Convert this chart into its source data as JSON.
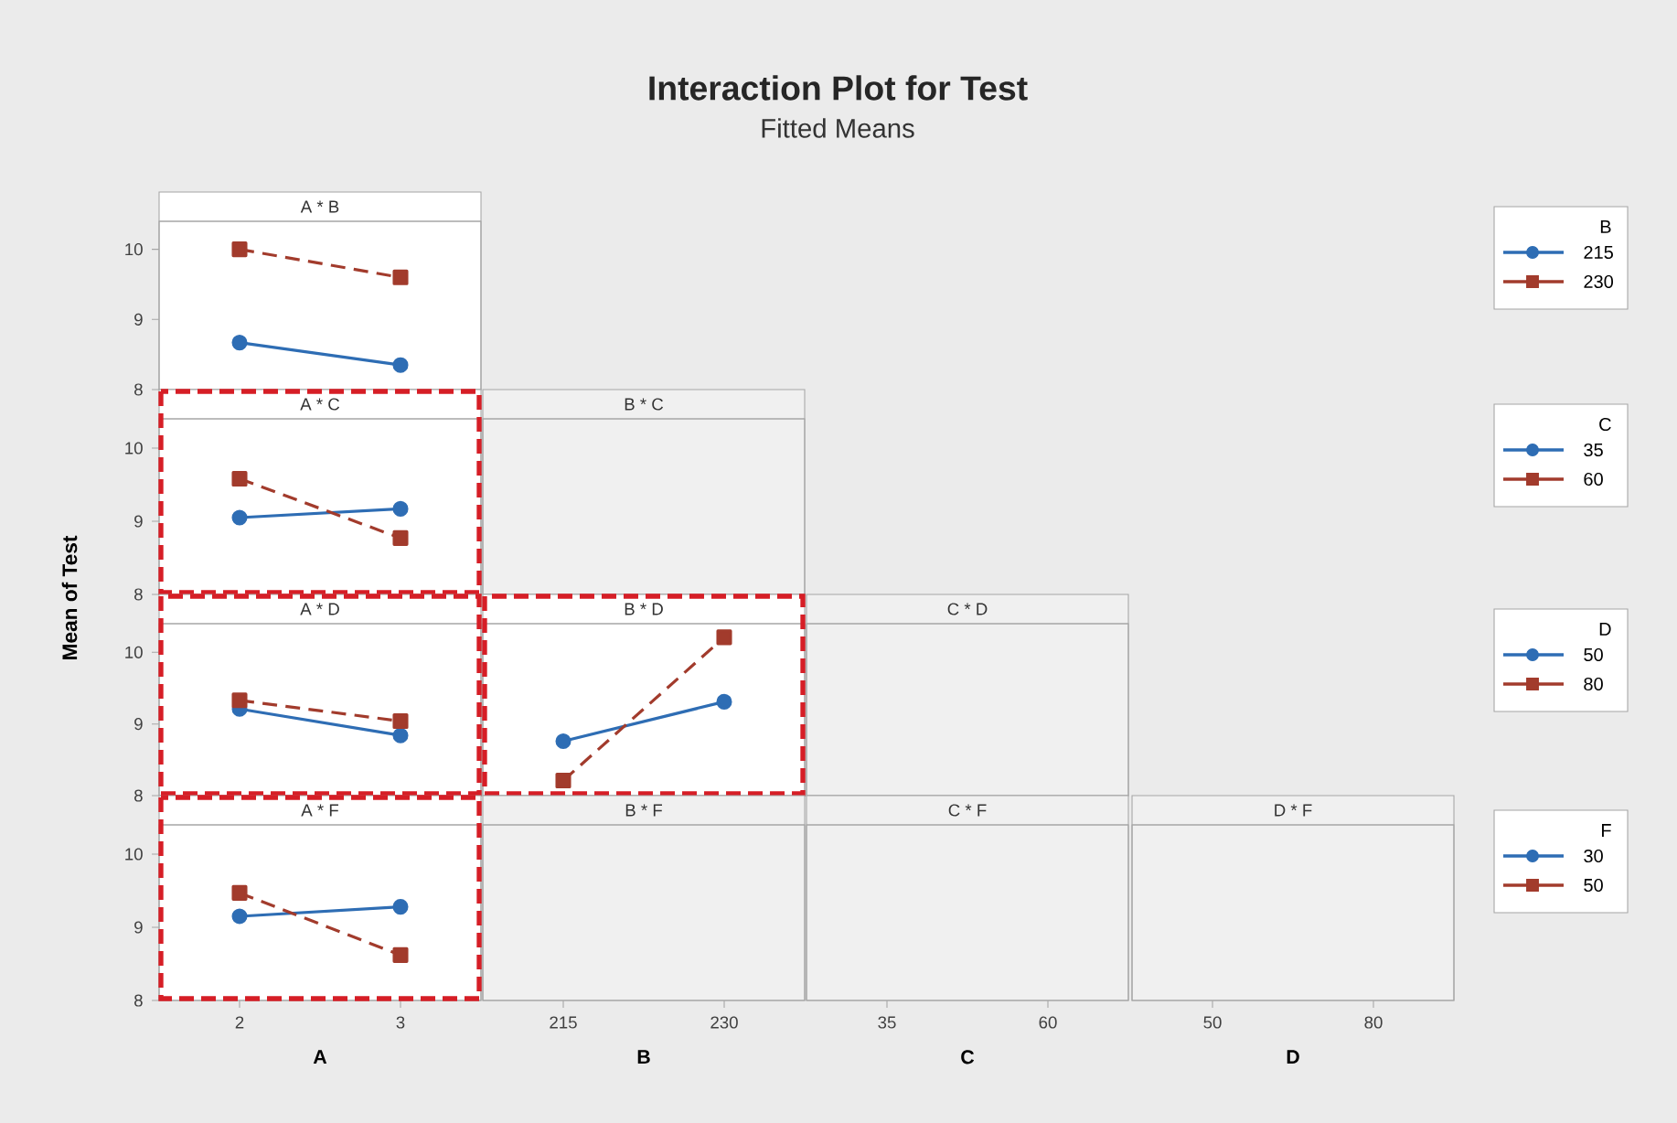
{
  "chart_data": [
    {
      "type": "other",
      "title": "Interaction Plot for Test",
      "subtitle": "Fitted Means",
      "ylabel": "Mean of Test"
    },
    {
      "type": "line",
      "title": "A * B",
      "categories": [
        "2",
        "3"
      ],
      "ylim": [
        8,
        10.4
      ],
      "yticks": [
        8,
        9,
        10
      ],
      "tick_labels": "y",
      "legend": "right",
      "legend_title": "B",
      "series": [
        {
          "name": "215",
          "color": "#2e6db4",
          "values": [
            8.67,
            8.35
          ],
          "marker": "circle",
          "line_style": "solid"
        },
        {
          "name": "230",
          "color": "#a23b2c",
          "values": [
            10.0,
            9.6
          ],
          "marker": "square",
          "line_style": "dashed"
        }
      ]
    },
    {
      "type": "line",
      "title": "A * C",
      "categories": [
        "2",
        "3"
      ],
      "ylim": [
        8,
        10.4
      ],
      "yticks": [
        8,
        9,
        10
      ],
      "tick_labels": "y",
      "legend": "right",
      "legend_title": "C",
      "series": [
        {
          "name": "35",
          "color": "#2e6db4",
          "values": [
            9.05,
            9.17
          ],
          "marker": "circle",
          "line_style": "solid"
        },
        {
          "name": "60",
          "color": "#a23b2c",
          "values": [
            9.58,
            8.77
          ],
          "marker": "square",
          "line_style": "dashed"
        }
      ]
    },
    {
      "type": "line",
      "title": "B * C",
      "categories": [
        "215",
        "230"
      ],
      "ylim": [
        8,
        10.4
      ],
      "yticks": [
        8,
        9,
        10
      ],
      "tick_labels": false
    },
    {
      "type": "line",
      "title": "A * D",
      "categories": [
        "2",
        "3"
      ],
      "ylim": [
        8,
        10.4
      ],
      "yticks": [
        8,
        9,
        10
      ],
      "tick_labels": "y",
      "legend": "right",
      "legend_title": "D",
      "series": [
        {
          "name": "50",
          "color": "#2e6db4",
          "values": [
            9.21,
            8.84
          ],
          "marker": "circle",
          "line_style": "solid"
        },
        {
          "name": "80",
          "color": "#a23b2c",
          "values": [
            9.33,
            9.04
          ],
          "marker": "square",
          "line_style": "dashed"
        }
      ]
    },
    {
      "type": "line",
      "title": "B * D",
      "categories": [
        "215",
        "230"
      ],
      "ylim": [
        8,
        10.4
      ],
      "yticks": [
        8,
        9,
        10
      ],
      "tick_labels": false,
      "series": [
        {
          "color": "#2e6db4",
          "values": [
            8.76,
            9.31
          ],
          "marker": "circle",
          "line_style": "solid"
        },
        {
          "color": "#a23b2c",
          "values": [
            8.21,
            10.21
          ],
          "marker": "square",
          "line_style": "dashed"
        }
      ]
    },
    {
      "type": "line",
      "title": "C * D",
      "categories": [
        "35",
        "60"
      ],
      "ylim": [
        8,
        10.4
      ],
      "yticks": [
        8,
        9,
        10
      ],
      "tick_labels": false
    },
    {
      "type": "line",
      "title": "A * F",
      "categories": [
        "2",
        "3"
      ],
      "xlabel": "A",
      "ylim": [
        8,
        10.4
      ],
      "yticks": [
        8,
        9,
        10
      ],
      "legend": "right",
      "legend_title": "F",
      "series": [
        {
          "name": "30",
          "color": "#2e6db4",
          "values": [
            9.15,
            9.28
          ],
          "marker": "circle",
          "line_style": "solid"
        },
        {
          "name": "50",
          "color": "#a23b2c",
          "values": [
            9.47,
            8.62
          ],
          "marker": "square",
          "line_style": "dashed"
        }
      ]
    },
    {
      "type": "line",
      "title": "B * F",
      "categories": [
        "215",
        "230"
      ],
      "xlabel": "B",
      "ylim": [
        8,
        10.4
      ],
      "yticks": [
        8,
        9,
        10
      ],
      "tick_labels": "x"
    },
    {
      "type": "line",
      "title": "C * F",
      "categories": [
        "35",
        "60"
      ],
      "xlabel": "C",
      "ylim": [
        8,
        10.4
      ],
      "yticks": [
        8,
        9,
        10
      ],
      "tick_labels": "x"
    },
    {
      "type": "line",
      "title": "D * F",
      "categories": [
        "50",
        "80"
      ],
      "xlabel": "D",
      "ylim": [
        8,
        10.4
      ],
      "yticks": [
        8,
        9,
        10
      ],
      "tick_labels": "x"
    }
  ]
}
